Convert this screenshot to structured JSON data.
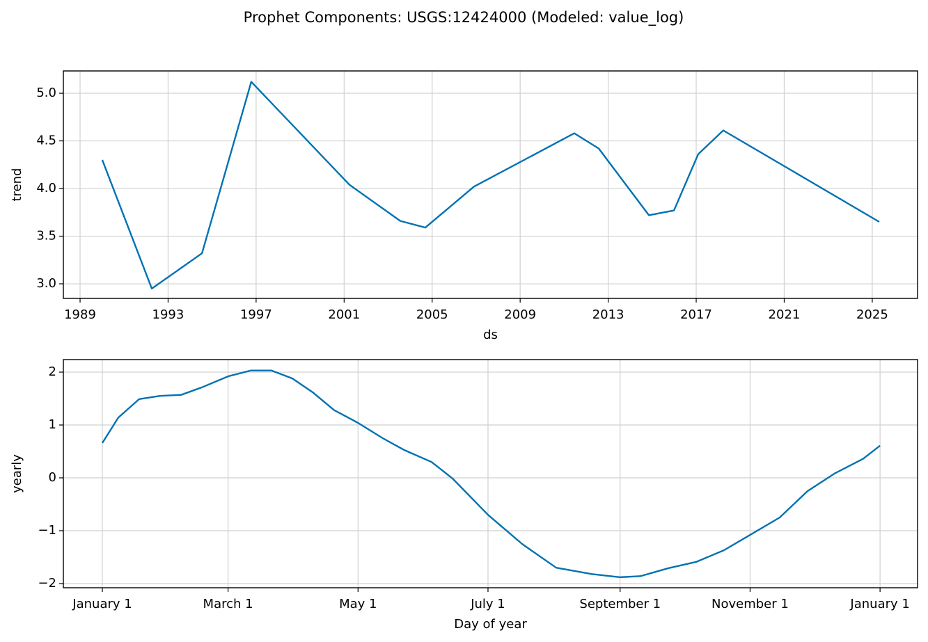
{
  "title": "Prophet Components: USGS:12424000 (Modeled: value_log)",
  "chart_data": [
    {
      "type": "line",
      "xlabel": "ds",
      "ylabel": "trend",
      "x": [
        1990.01,
        1992.26,
        1994.54,
        1996.78,
        2001.24,
        2003.55,
        2004.69,
        2006.9,
        2011.46,
        2012.57,
        2014.85,
        2015.99,
        2017.09,
        2018.23,
        2025.32
      ],
      "series": [
        {
          "name": "trend",
          "color": "#0072b2",
          "values": [
            4.3,
            2.95,
            3.32,
            5.12,
            4.04,
            3.66,
            3.59,
            4.02,
            4.58,
            4.42,
            3.72,
            3.77,
            4.36,
            4.61,
            3.65
          ]
        }
      ],
      "xlim": [
        1988.24,
        2027.06
      ],
      "ylim": [
        2.847,
        5.234
      ],
      "xticks": [
        1989,
        1993,
        1997,
        2001,
        2005,
        2009,
        2013,
        2017,
        2021,
        2025
      ],
      "yticks": [
        {
          "value": 3,
          "label": "3.0"
        },
        3.5,
        {
          "value": 4,
          "label": "4.0"
        },
        4.5,
        {
          "value": 5,
          "label": "5.0"
        }
      ],
      "grid": true
    },
    {
      "type": "line",
      "xlabel": "Day of year",
      "ylabel": "yearly",
      "x": [
        0,
        7.5,
        17.3,
        27,
        37,
        46.6,
        59,
        69.6,
        79.4,
        89.2,
        99,
        108.8,
        120,
        131.6,
        141.5,
        154.5,
        164.3,
        181,
        197,
        213,
        229.7,
        243,
        252.5,
        265.6,
        278.7,
        291.7,
        304,
        317.9,
        331,
        344,
        357,
        365
      ],
      "series": [
        {
          "name": "yearly",
          "color": "#0072b2",
          "values": [
            0.66,
            1.14,
            1.49,
            1.55,
            1.57,
            1.71,
            1.92,
            2.03,
            2.03,
            1.88,
            1.61,
            1.28,
            1.04,
            0.75,
            0.53,
            0.3,
            -0.01,
            -0.7,
            -1.25,
            -1.7,
            -1.82,
            -1.88,
            -1.86,
            -1.71,
            -1.59,
            -1.37,
            -1.08,
            -0.75,
            -0.25,
            0.09,
            0.36,
            0.61
          ]
        }
      ],
      "xlim": [
        -18.3,
        382.6
      ],
      "ylim": [
        -2.079,
        2.237
      ],
      "xticks": [
        {
          "value": 0,
          "label": "January 1"
        },
        {
          "value": 59,
          "label": "March 1"
        },
        {
          "value": 120,
          "label": "May 1"
        },
        {
          "value": 181,
          "label": "July 1"
        },
        {
          "value": 243,
          "label": "September 1"
        },
        {
          "value": 304,
          "label": "November 1"
        },
        {
          "value": 365,
          "label": "January 1"
        }
      ],
      "yticks": [
        {
          "value": -2,
          "label": "−2"
        },
        {
          "value": -1,
          "label": "−1"
        },
        0,
        1,
        2
      ],
      "grid": true
    }
  ]
}
